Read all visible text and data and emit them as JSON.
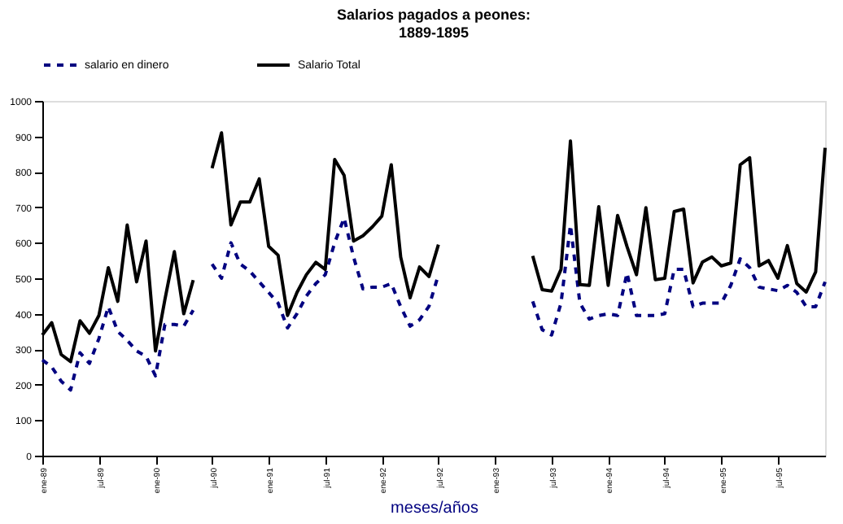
{
  "chart_data": {
    "type": "line",
    "title": [
      "Salarios pagados a peones:",
      "1889-1895"
    ],
    "xlabel": "meses/años",
    "categories": [
      "ene-89",
      null,
      null,
      null,
      null,
      null,
      "jul-89",
      null,
      null,
      null,
      null,
      null,
      "ene-90",
      null,
      null,
      null,
      null,
      null,
      "jul-90",
      null,
      null,
      null,
      null,
      null,
      "ene-91",
      null,
      null,
      null,
      null,
      null,
      "jul-91",
      null,
      null,
      null,
      null,
      null,
      "ene-92",
      null,
      null,
      null,
      null,
      null,
      "jul-92",
      null,
      null,
      null,
      null,
      null,
      "ene-93",
      null,
      null,
      null,
      null,
      null,
      "jul-93",
      null,
      null,
      null,
      null,
      null,
      "ene-94",
      null,
      null,
      null,
      null,
      null,
      "jul-94",
      null,
      null,
      null,
      null,
      null,
      "ene-95",
      null,
      null,
      null,
      null,
      null,
      "jul-95",
      null,
      null,
      null,
      null,
      null
    ],
    "series": [
      {
        "name": "salario en dinero",
        "color": "#000080",
        "line_style": "dashed",
        "values": [
          270,
          250,
          210,
          185,
          290,
          260,
          330,
          420,
          350,
          325,
          295,
          280,
          225,
          370,
          370,
          365,
          410,
          null,
          540,
          500,
          600,
          540,
          520,
          490,
          460,
          430,
          360,
          400,
          450,
          485,
          510,
          600,
          670,
          560,
          470,
          475,
          475,
          485,
          420,
          365,
          383,
          421,
          510,
          null,
          null,
          null,
          null,
          null,
          null,
          null,
          null,
          null,
          435,
          355,
          340,
          430,
          650,
          430,
          385,
          395,
          400,
          395,
          515,
          395,
          395,
          395,
          400,
          525,
          525,
          420,
          430,
          430,
          430,
          480,
          555,
          530,
          475,
          470,
          465,
          480,
          460,
          420,
          420,
          490
        ]
      },
      {
        "name": "Salario Total",
        "color": "#000000",
        "line_style": "solid",
        "values": [
          340,
          375,
          285,
          265,
          380,
          345,
          395,
          530,
          435,
          650,
          490,
          605,
          295,
          440,
          575,
          400,
          495,
          null,
          810,
          910,
          650,
          715,
          715,
          780,
          590,
          565,
          395,
          460,
          510,
          545,
          525,
          835,
          790,
          605,
          620,
          645,
          675,
          820,
          560,
          445,
          532,
          505,
          595,
          null,
          null,
          null,
          null,
          null,
          null,
          null,
          null,
          null,
          563,
          468,
          464,
          525,
          887,
          482,
          480,
          702,
          480,
          677,
          589,
          510,
          699,
          496,
          500,
          688,
          695,
          487,
          546,
          560,
          535,
          543,
          820,
          840,
          535,
          550,
          500,
          592,
          485,
          461,
          518,
          868
        ]
      }
    ],
    "ylim": [
      0,
      1000
    ],
    "yticks": [
      0,
      100,
      200,
      300,
      400,
      500,
      600,
      700,
      800,
      900,
      1000
    ],
    "legend": "top",
    "grid": false,
    "marker": "none"
  }
}
